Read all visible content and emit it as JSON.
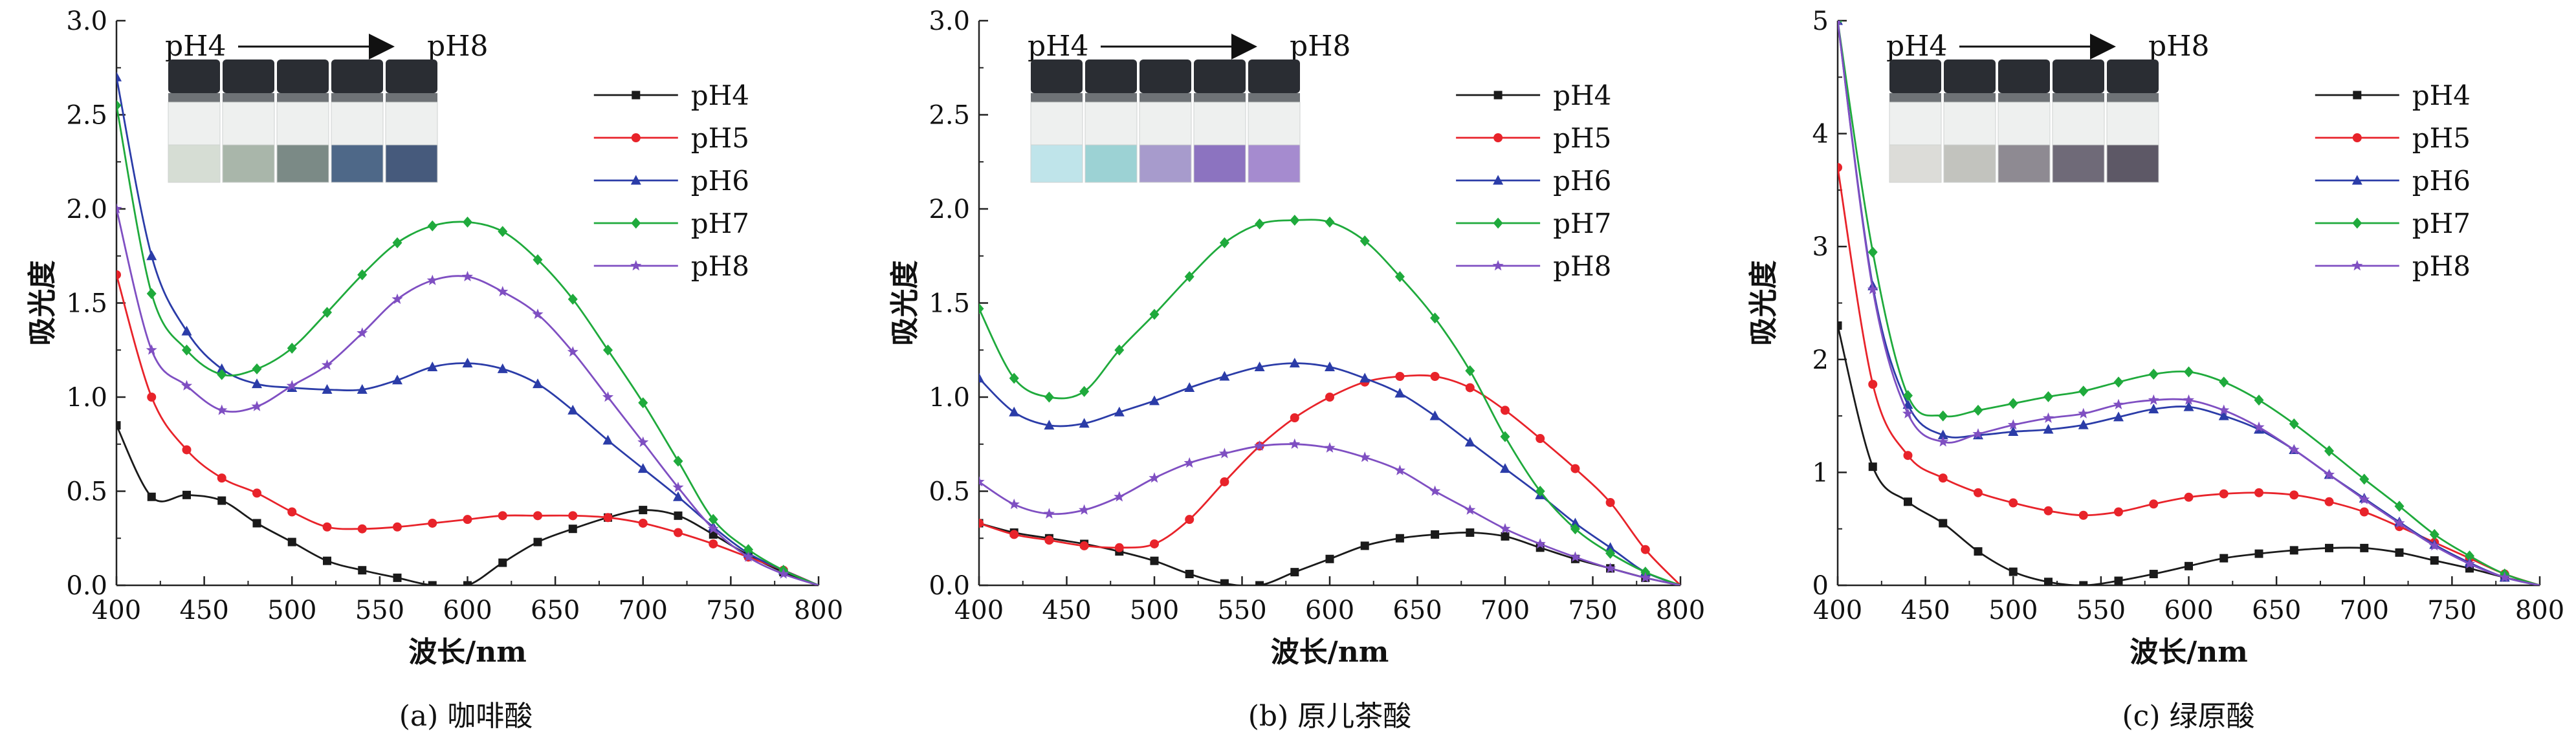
{
  "chart_data": [
    {
      "type": "line",
      "caption": "(a) 咖啡酸",
      "xlabel": "波长/nm",
      "ylabel": "吸光度",
      "xlim": [
        400,
        800
      ],
      "ylim": [
        0,
        3.0
      ],
      "xticks": [
        "400",
        "450",
        "500",
        "550",
        "600",
        "650",
        "700",
        "750",
        "800"
      ],
      "yticks": [
        "0.0",
        "0.5",
        "1.0",
        "1.5",
        "2.0",
        "2.5",
        "3.0"
      ],
      "inset_label_left": "pH4",
      "inset_label_right": "pH8",
      "vial_colors": [
        "#d6ddd4",
        "#a9b6aa",
        "#7b8a86",
        "#4e6888",
        "#465a7c"
      ],
      "x": [
        400,
        420,
        440,
        460,
        480,
        500,
        520,
        540,
        560,
        580,
        600,
        620,
        640,
        660,
        680,
        700,
        720,
        740,
        760,
        780,
        800
      ],
      "series": [
        {
          "name": "pH4",
          "color": "#1a1a1a",
          "marker": "square",
          "values": [
            0.85,
            0.47,
            0.48,
            0.45,
            0.33,
            0.23,
            0.13,
            0.08,
            0.04,
            0.0,
            0.0,
            0.12,
            0.23,
            0.3,
            0.36,
            0.4,
            0.37,
            0.27,
            0.16,
            0.07,
            0.0
          ]
        },
        {
          "name": "pH5",
          "color": "#e8232a",
          "marker": "circle",
          "values": [
            1.65,
            1.0,
            0.72,
            0.57,
            0.49,
            0.39,
            0.31,
            0.3,
            0.31,
            0.33,
            0.35,
            0.37,
            0.37,
            0.37,
            0.36,
            0.33,
            0.28,
            0.22,
            0.15,
            0.08,
            0.0
          ]
        },
        {
          "name": "pH6",
          "color": "#2b3ca8",
          "marker": "triangle",
          "values": [
            2.7,
            1.75,
            1.35,
            1.15,
            1.07,
            1.05,
            1.04,
            1.04,
            1.09,
            1.16,
            1.18,
            1.15,
            1.07,
            0.93,
            0.77,
            0.62,
            0.47,
            0.31,
            0.17,
            0.08,
            0.0
          ]
        },
        {
          "name": "pH7",
          "color": "#1faa3c",
          "marker": "diamond",
          "values": [
            2.55,
            1.55,
            1.25,
            1.12,
            1.15,
            1.26,
            1.45,
            1.65,
            1.82,
            1.91,
            1.93,
            1.88,
            1.73,
            1.52,
            1.25,
            0.97,
            0.66,
            0.35,
            0.19,
            0.08,
            0.0
          ]
        },
        {
          "name": "pH8",
          "color": "#7f4fc2",
          "marker": "star",
          "values": [
            2.0,
            1.25,
            1.06,
            0.93,
            0.95,
            1.06,
            1.17,
            1.34,
            1.52,
            1.62,
            1.64,
            1.56,
            1.44,
            1.24,
            1.0,
            0.76,
            0.52,
            0.3,
            0.15,
            0.06,
            0.0
          ]
        }
      ]
    },
    {
      "type": "line",
      "caption": "(b) 原儿茶酸",
      "xlabel": "波长/nm",
      "ylabel": "吸光度",
      "xlim": [
        400,
        800
      ],
      "ylim": [
        0,
        3.0
      ],
      "xticks": [
        "400",
        "450",
        "500",
        "550",
        "600",
        "650",
        "700",
        "750",
        "800"
      ],
      "yticks": [
        "0.0",
        "0.5",
        "1.0",
        "1.5",
        "2.0",
        "2.5",
        "3.0"
      ],
      "inset_label_left": "pH4",
      "inset_label_right": "pH8",
      "vial_colors": [
        "#bfe4ea",
        "#9cd2d4",
        "#a79bcc",
        "#8c73c0",
        "#a58bcf"
      ],
      "x": [
        400,
        420,
        440,
        460,
        480,
        500,
        520,
        540,
        560,
        580,
        600,
        620,
        640,
        660,
        680,
        700,
        720,
        740,
        760,
        780,
        800
      ],
      "series": [
        {
          "name": "pH4",
          "color": "#1a1a1a",
          "marker": "square",
          "values": [
            0.33,
            0.28,
            0.25,
            0.22,
            0.18,
            0.13,
            0.06,
            0.01,
            0.0,
            0.07,
            0.14,
            0.21,
            0.25,
            0.27,
            0.28,
            0.26,
            0.2,
            0.14,
            0.09,
            0.04,
            0.0
          ]
        },
        {
          "name": "pH5",
          "color": "#e8232a",
          "marker": "circle",
          "values": [
            0.33,
            0.27,
            0.24,
            0.21,
            0.2,
            0.22,
            0.35,
            0.55,
            0.74,
            0.89,
            1.0,
            1.08,
            1.11,
            1.11,
            1.05,
            0.93,
            0.78,
            0.62,
            0.44,
            0.19,
            0.0
          ]
        },
        {
          "name": "pH6",
          "color": "#2b3ca8",
          "marker": "triangle",
          "values": [
            1.1,
            0.92,
            0.85,
            0.86,
            0.92,
            0.98,
            1.05,
            1.11,
            1.16,
            1.18,
            1.16,
            1.1,
            1.02,
            0.9,
            0.76,
            0.62,
            0.48,
            0.33,
            0.2,
            0.07,
            0.0
          ]
        },
        {
          "name": "pH7",
          "color": "#1faa3c",
          "marker": "diamond",
          "values": [
            1.47,
            1.1,
            1.0,
            1.03,
            1.25,
            1.44,
            1.64,
            1.82,
            1.92,
            1.94,
            1.93,
            1.83,
            1.64,
            1.42,
            1.14,
            0.79,
            0.5,
            0.3,
            0.17,
            0.07,
            0.0
          ]
        },
        {
          "name": "pH8",
          "color": "#7f4fc2",
          "marker": "star",
          "values": [
            0.55,
            0.43,
            0.38,
            0.4,
            0.47,
            0.57,
            0.65,
            0.7,
            0.74,
            0.75,
            0.73,
            0.68,
            0.61,
            0.5,
            0.4,
            0.3,
            0.22,
            0.15,
            0.09,
            0.04,
            0.0
          ]
        }
      ]
    },
    {
      "type": "line",
      "caption": "(c) 绿原酸",
      "xlabel": "波长/nm",
      "ylabel": "吸光度",
      "xlim": [
        400,
        800
      ],
      "ylim": [
        0,
        5
      ],
      "xticks": [
        "400",
        "450",
        "500",
        "550",
        "600",
        "650",
        "700",
        "750",
        "800"
      ],
      "yticks": [
        "0",
        "1",
        "2",
        "3",
        "4",
        "5"
      ],
      "inset_label_left": "pH4",
      "inset_label_right": "pH8",
      "vial_colors": [
        "#dcdcd8",
        "#c2c3be",
        "#8e8a92",
        "#6f6a78",
        "#5d5866"
      ],
      "x": [
        400,
        420,
        440,
        460,
        480,
        500,
        520,
        540,
        560,
        580,
        600,
        620,
        640,
        660,
        680,
        700,
        720,
        740,
        760,
        780,
        800
      ],
      "series": [
        {
          "name": "pH4",
          "color": "#1a1a1a",
          "marker": "square",
          "values": [
            2.3,
            1.05,
            0.74,
            0.55,
            0.3,
            0.12,
            0.03,
            0.0,
            0.04,
            0.1,
            0.17,
            0.24,
            0.28,
            0.31,
            0.33,
            0.33,
            0.29,
            0.22,
            0.15,
            0.07,
            0.0
          ]
        },
        {
          "name": "pH5",
          "color": "#e8232a",
          "marker": "circle",
          "values": [
            3.7,
            1.78,
            1.15,
            0.95,
            0.82,
            0.73,
            0.66,
            0.62,
            0.65,
            0.72,
            0.78,
            0.81,
            0.82,
            0.8,
            0.74,
            0.65,
            0.52,
            0.38,
            0.24,
            0.1,
            0.0
          ]
        },
        {
          "name": "pH6",
          "color": "#2b3ca8",
          "marker": "triangle",
          "values": [
            5.0,
            2.65,
            1.6,
            1.33,
            1.33,
            1.36,
            1.38,
            1.42,
            1.49,
            1.56,
            1.58,
            1.5,
            1.38,
            1.2,
            0.98,
            0.77,
            0.56,
            0.36,
            0.2,
            0.07,
            0.0
          ]
        },
        {
          "name": "pH7",
          "color": "#1faa3c",
          "marker": "diamond",
          "values": [
            5.0,
            2.95,
            1.68,
            1.5,
            1.55,
            1.61,
            1.67,
            1.72,
            1.8,
            1.87,
            1.89,
            1.8,
            1.64,
            1.43,
            1.19,
            0.94,
            0.7,
            0.45,
            0.26,
            0.1,
            0.0
          ]
        },
        {
          "name": "pH8",
          "color": "#7f4fc2",
          "marker": "star",
          "values": [
            5.0,
            2.62,
            1.52,
            1.27,
            1.34,
            1.42,
            1.48,
            1.52,
            1.6,
            1.64,
            1.64,
            1.55,
            1.4,
            1.2,
            0.98,
            0.76,
            0.55,
            0.35,
            0.19,
            0.07,
            0.0
          ]
        }
      ]
    }
  ]
}
